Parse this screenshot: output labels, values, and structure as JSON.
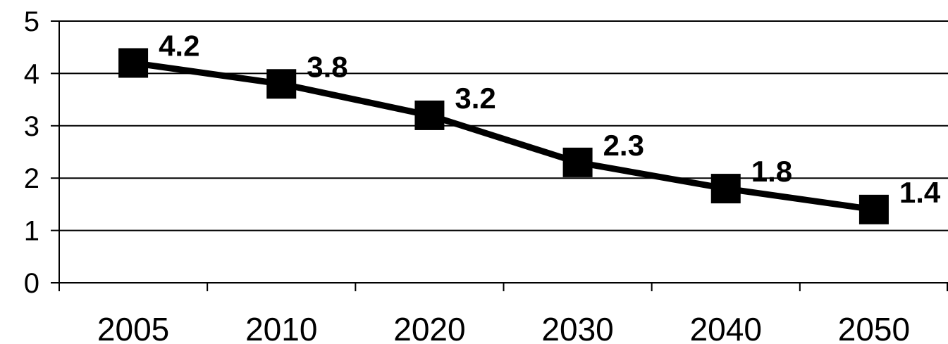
{
  "chart_data": {
    "type": "line",
    "title": "",
    "xlabel": "",
    "ylabel": "",
    "categories": [
      "2005",
      "2010",
      "2020",
      "2030",
      "2040",
      "2050"
    ],
    "series": [
      {
        "values": [
          4.2,
          3.8,
          3.2,
          2.3,
          1.8,
          1.4
        ]
      }
    ],
    "data_labels": [
      "4.2",
      "3.8",
      "3.2",
      "2.3",
      "1.8",
      "1.4"
    ],
    "y_ticks": [
      "0",
      "1",
      "2",
      "3",
      "4",
      "5"
    ],
    "ylim": [
      0,
      5
    ],
    "grid": true,
    "legend": "none",
    "line_color": "#000000",
    "marker": "square"
  }
}
